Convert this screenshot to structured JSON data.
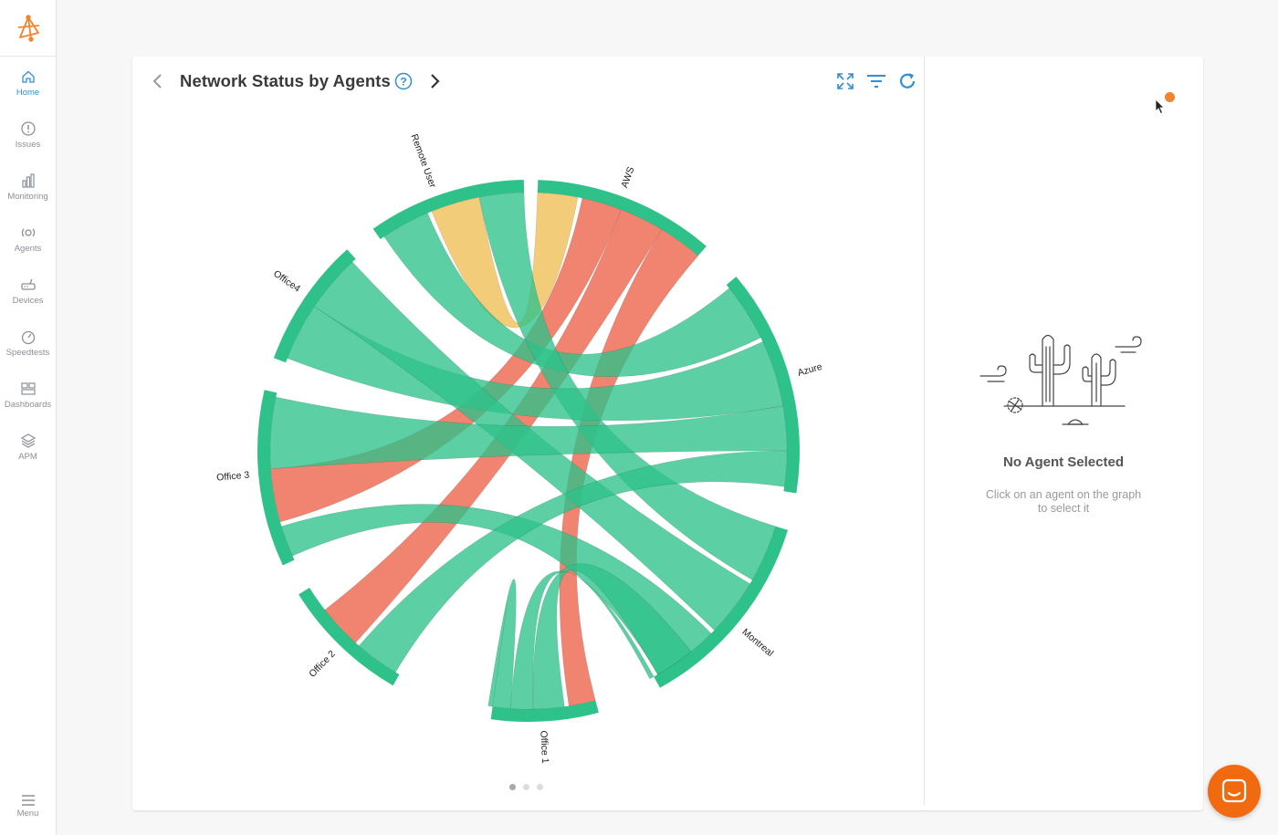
{
  "sidebar": {
    "items": [
      {
        "label": "Home",
        "icon": "home-icon",
        "active": true
      },
      {
        "label": "Issues",
        "icon": "alert-circle-icon",
        "active": false
      },
      {
        "label": "Monitoring",
        "icon": "bar-chart-icon",
        "active": false
      },
      {
        "label": "Agents",
        "icon": "agent-icon",
        "active": false
      },
      {
        "label": "Devices",
        "icon": "router-icon",
        "active": false
      },
      {
        "label": "Speedtests",
        "icon": "gauge-icon",
        "active": false
      },
      {
        "label": "Dashboards",
        "icon": "dashboard-icon",
        "active": false
      },
      {
        "label": "APM",
        "icon": "layers-icon",
        "active": false
      }
    ],
    "menu_label": "Menu"
  },
  "header": {
    "title": "Network Status by Agents",
    "help_icon": "question-circle-icon"
  },
  "toolbar": {
    "expand_icon": "expand-icon",
    "filter_icon": "filter-icon",
    "refresh_icon": "refresh-icon"
  },
  "colors": {
    "accent": "#2f8fd6",
    "healthy": "#2ec28a",
    "critical": "#f07a64",
    "warning": "#f2c86e",
    "brand": "#f4832e"
  },
  "chart_data": {
    "type": "chord",
    "nodes": [
      "AWS",
      "Azure",
      "Montreal",
      "Office 1",
      "Office 2",
      "Office 3",
      "Office4",
      "Remote User"
    ],
    "links": [
      {
        "source": "Remote User",
        "target": "AWS",
        "status": "warning"
      },
      {
        "source": "AWS",
        "target": "Office 3",
        "status": "critical"
      },
      {
        "source": "AWS",
        "target": "Office 2",
        "status": "critical"
      },
      {
        "source": "AWS",
        "target": "Office 1",
        "status": "critical"
      },
      {
        "source": "Remote User",
        "target": "Azure",
        "status": "healthy"
      },
      {
        "source": "Remote User",
        "target": "Montreal",
        "status": "healthy"
      },
      {
        "source": "Office4",
        "target": "Azure",
        "status": "healthy"
      },
      {
        "source": "Office4",
        "target": "Montreal",
        "status": "healthy"
      },
      {
        "source": "Office 3",
        "target": "Azure",
        "status": "healthy"
      },
      {
        "source": "Office 3",
        "target": "Montreal",
        "status": "healthy"
      },
      {
        "source": "Office 2",
        "target": "Azure",
        "status": "healthy"
      },
      {
        "source": "Office 1",
        "target": "Azure",
        "status": "healthy"
      },
      {
        "source": "Office 1",
        "target": "Montreal",
        "status": "healthy"
      },
      {
        "source": "Office 1",
        "target": "Office 1",
        "status": "healthy"
      }
    ]
  },
  "pager": {
    "pages": 3,
    "current": 1
  },
  "empty_state": {
    "title": "No Agent Selected",
    "subtitle": "Click on an agent on the graph to select it",
    "illustration": "desert-cactus-illustration"
  },
  "chat_button_icon": "chat-icon"
}
